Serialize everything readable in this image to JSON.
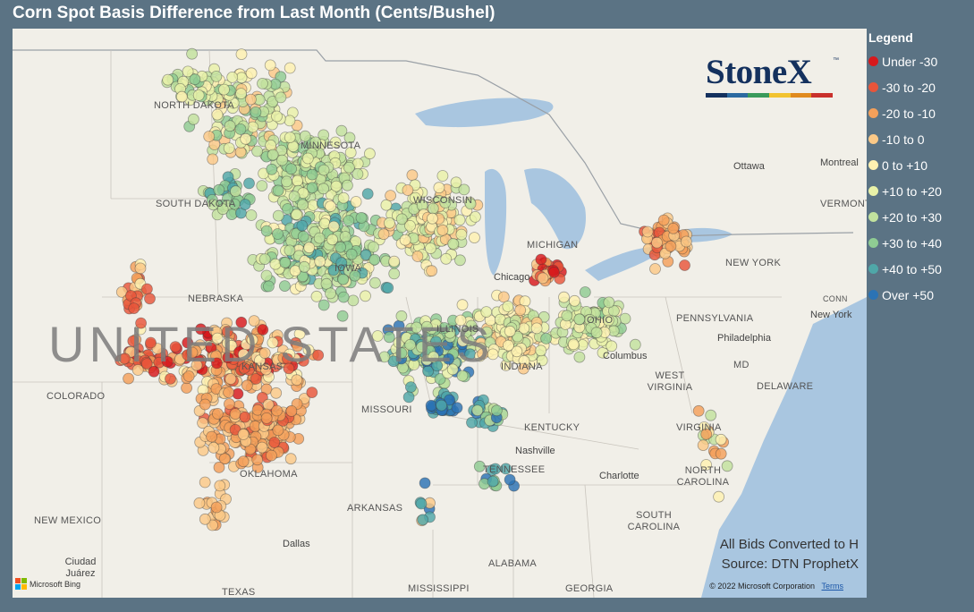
{
  "title": "Corn Spot Basis Difference from Last Month (Cents/Bushel)",
  "logo": {
    "text": "StoneX",
    "trademark": "™",
    "bar_colors": [
      "#14315e",
      "#2c6aa0",
      "#3a9a5b",
      "#f2c330",
      "#e08a1e",
      "#c9302c"
    ]
  },
  "legend": {
    "title": "Legend",
    "items": [
      {
        "label": "Under -30",
        "color": "#d7191c"
      },
      {
        "label": "-30 to -20",
        "color": "#e8553a"
      },
      {
        "label": "-20 to -10",
        "color": "#f4a05a"
      },
      {
        "label": "-10 to 0",
        "color": "#fbc987"
      },
      {
        "label": "0 to +10",
        "color": "#fef1b1"
      },
      {
        "label": "+10 to +20",
        "color": "#e9f2a8"
      },
      {
        "label": "+20 to +30",
        "color": "#c2e29e"
      },
      {
        "label": "+30 to +40",
        "color": "#8fcc93"
      },
      {
        "label": "+40 to +50",
        "color": "#4fa7a8"
      },
      {
        "label": "Over +50",
        "color": "#2b73b5"
      }
    ]
  },
  "notes": {
    "line1": "All Bids Converted to H",
    "line2": "Source: DTN ProphetX"
  },
  "copyright": "© 2022 Microsoft Corporation",
  "terms": "Terms",
  "bing": "Microsoft Bing",
  "map_labels": {
    "country": "UNITED STATES",
    "states": [
      "NORTH DAKOTA",
      "SOUTH DAKOTA",
      "MINNESOTA",
      "WISCONSIN",
      "MICHIGAN",
      "IOWA",
      "NEBRASKA",
      "ILLINOIS",
      "INDIANA",
      "OHIO",
      "MISSOURI",
      "KANSAS",
      "COLORADO",
      "NEW MEXICO",
      "OKLAHOMA",
      "TEXAS",
      "ARKANSAS",
      "MISSISSIPPI",
      "ALABAMA",
      "GEORGIA",
      "TENNESSEE",
      "KENTUCKY",
      "WEST VIRGINIA",
      "VIRGINIA",
      "NORTH CAROLINA",
      "SOUTH CAROLINA",
      "PENNSYLVANIA",
      "NEW YORK",
      "MD",
      "DELAWARE",
      "VERMONT",
      "CONN"
    ],
    "cities": [
      "Ottawa",
      "Montreal",
      "Chicago",
      "Columbus",
      "Philadelphia",
      "New York",
      "Nashville",
      "Charlotte",
      "Dallas",
      "Ciudad Juárez"
    ]
  }
}
